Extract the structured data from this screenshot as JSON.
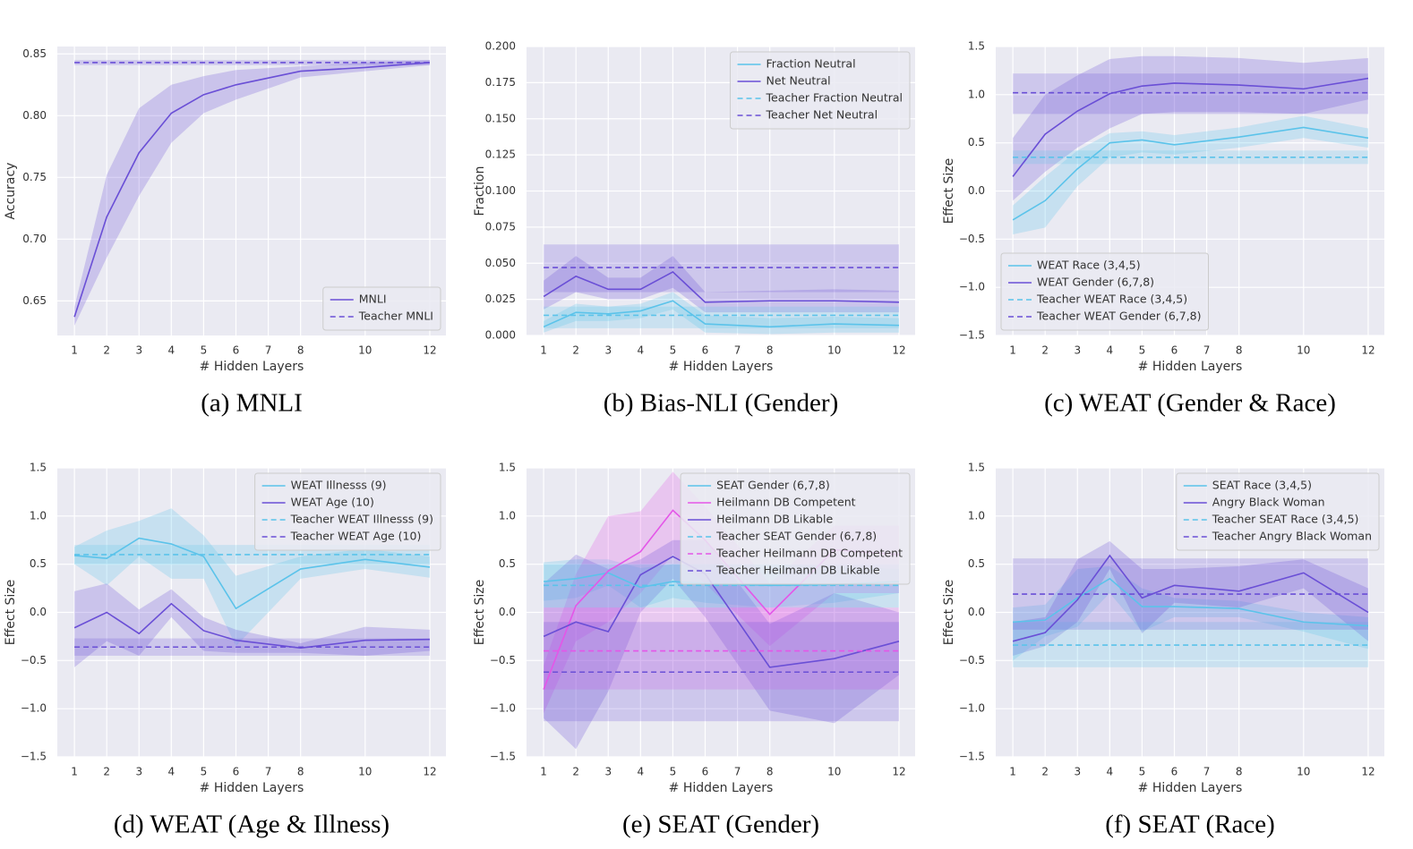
{
  "chart_data": [
    {
      "type": "line",
      "title": "(a) MNLI",
      "xlabel": "# Hidden Layers",
      "ylabel": "Accuracy",
      "x": [
        1,
        2,
        3,
        4,
        5,
        6,
        8,
        10,
        12
      ],
      "xlim": [
        0.47,
        12.5
      ],
      "xticks": [
        1,
        2,
        3,
        4,
        5,
        6,
        7,
        8,
        10,
        12
      ],
      "ylim": [
        0.622,
        0.856
      ],
      "yticks": [
        0.65,
        {
          "value": 0.7,
          "label": "0.70"
        },
        0.75,
        {
          "value": 0.8,
          "label": "0.80"
        },
        0.85
      ],
      "grid": true,
      "legend": "lower right",
      "series": [
        {
          "name": "MNLI",
          "color": "#6a4fd6",
          "dashed": false,
          "values": [
            0.637,
            0.718,
            0.77,
            0.802,
            0.817,
            0.825,
            0.836,
            0.839,
            0.843
          ],
          "lower": [
            0.63,
            0.685,
            0.735,
            0.778,
            0.802,
            0.813,
            0.831,
            0.836,
            0.841
          ],
          "upper": [
            0.645,
            0.752,
            0.806,
            0.825,
            0.832,
            0.837,
            0.84,
            0.843,
            0.845
          ]
        },
        {
          "name": "Teacher MNLI",
          "color": "#6a4fd6",
          "dashed": true,
          "value": 0.843,
          "lower": 0.841,
          "upper": 0.845
        }
      ]
    },
    {
      "type": "line",
      "title": "(b) Bias-NLI (Gender)",
      "xlabel": "# Hidden Layers",
      "ylabel": "Fraction",
      "x": [
        1,
        2,
        3,
        4,
        5,
        6,
        8,
        10,
        12
      ],
      "xlim": [
        0.47,
        12.5
      ],
      "xticks": [
        1,
        2,
        3,
        4,
        5,
        6,
        7,
        8,
        10,
        12
      ],
      "ylim": [
        0,
        0.2
      ],
      "yticks": [
        {
          "value": 0,
          "label": "0.000"
        },
        0.025,
        {
          "value": 0.05,
          "label": "0.050"
        },
        0.075,
        {
          "value": 0.1,
          "label": "0.100"
        },
        0.125,
        {
          "value": 0.15,
          "label": "0.150"
        },
        0.175,
        {
          "value": 0.2,
          "label": "0.200"
        }
      ],
      "grid": true,
      "legend": "upper right",
      "series": [
        {
          "name": "Fraction Neutral",
          "color": "#5bc3ea",
          "dashed": false,
          "values": [
            0.006,
            0.016,
            0.015,
            0.017,
            0.024,
            0.008,
            0.006,
            0.008,
            0.007
          ],
          "lower": [
            0.002,
            0.01,
            0.01,
            0.012,
            0.018,
            0.002,
            0.001,
            0.002,
            0.002
          ],
          "upper": [
            0.01,
            0.022,
            0.02,
            0.022,
            0.03,
            0.014,
            0.012,
            0.013,
            0.012
          ]
        },
        {
          "name": "Net Neutral",
          "color": "#6a4fd6",
          "dashed": false,
          "values": [
            0.027,
            0.041,
            0.032,
            0.032,
            0.044,
            0.023,
            0.024,
            0.024,
            0.023
          ],
          "lower": [
            0.018,
            0.03,
            0.025,
            0.025,
            0.033,
            0.016,
            0.016,
            0.016,
            0.016
          ],
          "upper": [
            0.038,
            0.055,
            0.04,
            0.04,
            0.055,
            0.03,
            0.031,
            0.032,
            0.031
          ]
        },
        {
          "name": "Teacher Fraction Neutral",
          "color": "#5bc3ea",
          "dashed": true,
          "value": 0.014,
          "lower": 0.005,
          "upper": 0.02
        },
        {
          "name": "Teacher Net Neutral",
          "color": "#6a4fd6",
          "dashed": true,
          "value": 0.047,
          "lower": 0.03,
          "upper": 0.063
        }
      ]
    },
    {
      "type": "line",
      "title": "(c) WEAT (Gender & Race)",
      "xlabel": "# Hidden Layers",
      "ylabel": "Effect Size",
      "x": [
        1,
        2,
        3,
        4,
        5,
        6,
        8,
        10,
        12
      ],
      "xlim": [
        0.47,
        12.5
      ],
      "xticks": [
        1,
        2,
        3,
        4,
        5,
        6,
        7,
        8,
        10,
        12
      ],
      "ylim": [
        -1.5,
        1.5
      ],
      "yticks": [
        {
          "value": -1.5,
          "label": "−1.5"
        },
        {
          "value": -1,
          "label": "−1.0"
        },
        {
          "value": -0.5,
          "label": "−0.5"
        },
        {
          "value": 0,
          "label": "0.0"
        },
        0.5,
        {
          "value": 1,
          "label": "1.0"
        },
        1.5
      ],
      "grid": true,
      "legend": "lower left",
      "series": [
        {
          "name": "WEAT Race (3,4,5)",
          "color": "#5bc3ea",
          "dashed": false,
          "values": [
            -0.3,
            -0.1,
            0.23,
            0.5,
            0.53,
            0.48,
            0.56,
            0.66,
            0.55
          ],
          "lower": [
            -0.45,
            -0.38,
            0.05,
            0.35,
            0.4,
            0.38,
            0.45,
            0.55,
            0.45
          ],
          "upper": [
            -0.15,
            0.15,
            0.42,
            0.6,
            0.62,
            0.58,
            0.66,
            0.78,
            0.65
          ]
        },
        {
          "name": "WEAT Gender (6,7,8)",
          "color": "#6a4fd6",
          "dashed": false,
          "values": [
            0.15,
            0.59,
            0.83,
            1.01,
            1.09,
            1.12,
            1.1,
            1.06,
            1.17
          ],
          "lower": [
            -0.1,
            0.2,
            0.45,
            0.65,
            0.8,
            0.82,
            0.82,
            0.8,
            0.95
          ],
          "upper": [
            0.55,
            1.0,
            1.2,
            1.37,
            1.4,
            1.4,
            1.38,
            1.33,
            1.38
          ]
        },
        {
          "name": "Teacher WEAT Race (3,4,5)",
          "color": "#5bc3ea",
          "dashed": true,
          "value": 0.35,
          "lower": 0.28,
          "upper": 0.42
        },
        {
          "name": "Teacher WEAT Gender (6,7,8)",
          "color": "#6a4fd6",
          "dashed": true,
          "value": 1.02,
          "lower": 0.8,
          "upper": 1.22
        }
      ]
    },
    {
      "type": "line",
      "title": "(d) WEAT (Age & Illness)",
      "xlabel": "# Hidden Layers",
      "ylabel": "Effect Size",
      "x": [
        1,
        2,
        3,
        4,
        5,
        6,
        8,
        10,
        12
      ],
      "xlim": [
        0.47,
        12.5
      ],
      "xticks": [
        1,
        2,
        3,
        4,
        5,
        6,
        7,
        8,
        10,
        12
      ],
      "ylim": [
        -1.5,
        1.5
      ],
      "yticks": [
        {
          "value": -1.5,
          "label": "−1.5"
        },
        {
          "value": -1,
          "label": "−1.0"
        },
        {
          "value": -0.5,
          "label": "−0.5"
        },
        {
          "value": 0,
          "label": "0.0"
        },
        0.5,
        {
          "value": 1,
          "label": "1.0"
        },
        1.5
      ],
      "grid": true,
      "legend": "upper right",
      "series": [
        {
          "name": "WEAT Illnesss (9)",
          "color": "#5bc3ea",
          "dashed": false,
          "values": [
            0.59,
            0.56,
            0.77,
            0.71,
            0.58,
            0.04,
            0.45,
            0.55,
            0.47
          ],
          "lower": [
            0.5,
            0.28,
            0.58,
            0.35,
            0.35,
            -0.35,
            0.35,
            0.45,
            0.36
          ],
          "upper": [
            0.68,
            0.85,
            0.95,
            1.08,
            0.8,
            0.38,
            0.58,
            0.66,
            0.58
          ]
        },
        {
          "name": "WEAT Age (10)",
          "color": "#6a4fd6",
          "dashed": false,
          "values": [
            -0.16,
            0.0,
            -0.22,
            0.09,
            -0.19,
            -0.29,
            -0.37,
            -0.29,
            -0.28
          ],
          "lower": [
            -0.57,
            -0.3,
            -0.45,
            -0.05,
            -0.4,
            -0.42,
            -0.42,
            -0.45,
            -0.4
          ],
          "upper": [
            0.22,
            0.3,
            0.03,
            0.24,
            -0.05,
            -0.18,
            -0.32,
            -0.15,
            -0.18
          ]
        },
        {
          "name": "Teacher WEAT Illnesss (9)",
          "color": "#5bc3ea",
          "dashed": true,
          "value": 0.6,
          "lower": 0.5,
          "upper": 0.7
        },
        {
          "name": "Teacher WEAT Age (10)",
          "color": "#6a4fd6",
          "dashed": true,
          "value": -0.36,
          "lower": -0.45,
          "upper": -0.27
        }
      ]
    },
    {
      "type": "line",
      "title": "(e) SEAT (Gender)",
      "xlabel": "# Hidden Layers",
      "ylabel": "Effect Size",
      "x": [
        1,
        2,
        3,
        4,
        5,
        6,
        8,
        10,
        12
      ],
      "xlim": [
        0.47,
        12.5
      ],
      "xticks": [
        1,
        2,
        3,
        4,
        5,
        6,
        7,
        8,
        10,
        12
      ],
      "ylim": [
        -1.5,
        1.5
      ],
      "yticks": [
        {
          "value": -1.5,
          "label": "−1.5"
        },
        {
          "value": -1,
          "label": "−1.0"
        },
        {
          "value": -0.5,
          "label": "−0.5"
        },
        {
          "value": 0,
          "label": "0.0"
        },
        0.5,
        {
          "value": 1,
          "label": "1.0"
        },
        1.5
      ],
      "grid": true,
      "legend": "upper right",
      "series": [
        {
          "name": "SEAT Gender (6,7,8)",
          "color": "#5bc3ea",
          "dashed": false,
          "values": [
            0.32,
            0.35,
            0.41,
            0.26,
            0.32,
            0.3,
            0.28,
            0.29,
            0.32
          ],
          "lower": [
            0.12,
            0.15,
            0.28,
            0.05,
            0.15,
            0.1,
            0.05,
            0.1,
            0.2
          ],
          "upper": [
            0.52,
            0.55,
            0.55,
            0.46,
            0.5,
            0.5,
            0.5,
            0.48,
            0.45
          ]
        },
        {
          "name": "Heilmann DB Competent",
          "color": "#e456e8",
          "dashed": false,
          "values": [
            -0.8,
            0.07,
            0.43,
            0.63,
            1.06,
            0.75,
            -0.02,
            0.65,
            0.6
          ],
          "lower": [
            -1.05,
            -0.3,
            -0.1,
            0.2,
            0.6,
            0.3,
            -0.35,
            0.2,
            0.2
          ],
          "upper": [
            -0.55,
            0.4,
            1.0,
            1.05,
            1.46,
            1.1,
            0.3,
            0.9,
            0.9
          ]
        },
        {
          "name": "Heilmann DB Likable",
          "color": "#6a4fd6",
          "dashed": false,
          "values": [
            -0.25,
            -0.1,
            -0.2,
            0.39,
            0.58,
            0.4,
            -0.57,
            -0.48,
            -0.3
          ],
          "lower": [
            -1.1,
            -1.42,
            -0.82,
            0.0,
            0.35,
            -0.05,
            -1.02,
            -1.15,
            -0.65
          ],
          "upper": [
            0.3,
            0.6,
            0.45,
            0.55,
            0.75,
            0.75,
            -0.12,
            0.2,
            0.0
          ]
        },
        {
          "name": "Teacher SEAT Gender (6,7,8)",
          "color": "#5bc3ea",
          "dashed": true,
          "value": 0.28,
          "lower": 0.05,
          "upper": 0.5
        },
        {
          "name": "Teacher Heilmann DB Competent",
          "color": "#e456e8",
          "dashed": true,
          "value": -0.4,
          "lower": -0.8,
          "upper": 0.05
        },
        {
          "name": "Teacher Heilmann DB Likable",
          "color": "#6a4fd6",
          "dashed": true,
          "value": -0.62,
          "lower": -1.13,
          "upper": -0.1
        }
      ]
    },
    {
      "type": "line",
      "title": "(f) SEAT (Race)",
      "xlabel": "# Hidden Layers",
      "ylabel": "Effect Size",
      "x": [
        1,
        2,
        3,
        4,
        5,
        6,
        8,
        10,
        12
      ],
      "xlim": [
        0.47,
        12.5
      ],
      "xticks": [
        1,
        2,
        3,
        4,
        5,
        6,
        7,
        8,
        10,
        12
      ],
      "ylim": [
        -1.5,
        1.5
      ],
      "yticks": [
        {
          "value": -1.5,
          "label": "−1.5"
        },
        {
          "value": -1,
          "label": "−1.0"
        },
        {
          "value": -0.5,
          "label": "−0.5"
        },
        {
          "value": 0,
          "label": "0.0"
        },
        0.5,
        {
          "value": 1,
          "label": "1.0"
        },
        1.5
      ],
      "grid": true,
      "legend": "upper right",
      "series": [
        {
          "name": "SEAT Race (3,4,5)",
          "color": "#5bc3ea",
          "dashed": false,
          "values": [
            -0.1,
            -0.08,
            0.15,
            0.35,
            0.06,
            0.06,
            0.04,
            -0.1,
            -0.14
          ],
          "lower": [
            -0.5,
            -0.25,
            -0.15,
            0.2,
            -0.2,
            -0.05,
            -0.05,
            -0.2,
            -0.38
          ],
          "upper": [
            0.05,
            0.08,
            0.45,
            0.48,
            0.25,
            0.15,
            0.12,
            0.0,
            -0.05
          ]
        },
        {
          "name": "Angry Black Woman",
          "color": "#6a4fd6",
          "dashed": false,
          "values": [
            -0.3,
            -0.21,
            0.13,
            0.59,
            0.15,
            0.28,
            0.22,
            0.41,
            0.0
          ],
          "lower": [
            -0.45,
            -0.35,
            -0.1,
            0.45,
            -0.22,
            0.1,
            0.05,
            0.25,
            -0.3
          ],
          "upper": [
            -0.1,
            -0.05,
            0.55,
            0.74,
            0.45,
            0.45,
            0.48,
            0.55,
            0.25
          ]
        },
        {
          "name": "Teacher SEAT Race (3,4,5)",
          "color": "#5bc3ea",
          "dashed": true,
          "value": -0.34,
          "lower": -0.57,
          "upper": -0.1
        },
        {
          "name": "Teacher Angry Black Woman",
          "color": "#6a4fd6",
          "dashed": true,
          "value": 0.19,
          "lower": -0.18,
          "upper": 0.56
        }
      ]
    }
  ]
}
